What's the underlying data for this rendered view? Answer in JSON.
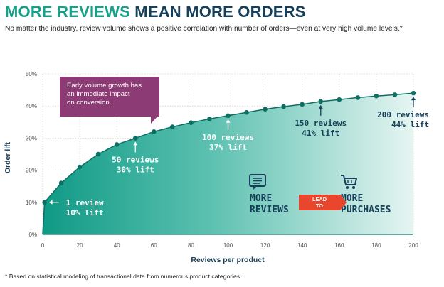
{
  "header": {
    "title_part1": "MORE REVIEWS",
    "title_part2": "MEAN MORE ORDERS",
    "subtitle": "No matter the industry, review volume shows a positive correlation with number of orders—even at very high volume levels.*"
  },
  "footnote": "* Based on statistical modeling of transactional data from numerous product categories.",
  "callout": {
    "line1": "Early volume growth has",
    "line2": "an immediate impact",
    "line3": "on conversion."
  },
  "flow": {
    "left_line1": "MORE",
    "left_line2": "REVIEWS",
    "arrow_line1": "LEAD",
    "arrow_line2": "TO",
    "right_line1": "MORE",
    "right_line2": "PURCHASES",
    "left_icon": "comment-icon",
    "right_icon": "shopping-cart-icon"
  },
  "colors": {
    "teal": "#16a08a",
    "navy": "#16405a",
    "callout_purple": "#8d3b75",
    "arrow_orange": "#e8472e"
  },
  "chart_data": {
    "type": "area",
    "title": "MORE REVIEWS MEAN MORE ORDERS",
    "xlabel": "Reviews per product",
    "ylabel": "Order lift",
    "xlim": [
      0,
      200
    ],
    "ylim": [
      0,
      50
    ],
    "x_ticks": [
      "0",
      "20",
      "40",
      "60",
      "80",
      "100",
      "120",
      "140",
      "160",
      "180",
      "200"
    ],
    "y_ticks": [
      "0%",
      "10%",
      "20%",
      "30%",
      "40%",
      "50%"
    ],
    "grid": true,
    "x": [
      0,
      1,
      10,
      20,
      30,
      40,
      50,
      60,
      70,
      80,
      90,
      100,
      110,
      120,
      130,
      140,
      150,
      160,
      170,
      180,
      190,
      200
    ],
    "values": [
      0,
      10,
      16,
      21,
      25,
      28,
      30,
      32,
      33.5,
      34.8,
      36,
      37,
      38,
      39,
      39.8,
      40.5,
      41.4,
      42,
      42.6,
      43.1,
      43.5,
      44
    ],
    "markers": [
      1,
      10,
      20,
      30,
      40,
      50,
      60,
      70,
      80,
      90,
      100,
      110,
      120,
      130,
      140,
      150,
      160,
      170,
      180,
      190,
      200
    ],
    "annotations": [
      {
        "x": 1,
        "y": 10,
        "line1": "1 review",
        "line2": "10% lift"
      },
      {
        "x": 50,
        "y": 30,
        "line1": "50 reviews",
        "line2": "30% lift"
      },
      {
        "x": 100,
        "y": 37,
        "line1": "100 reviews",
        "line2": "37% lift"
      },
      {
        "x": 150,
        "y": 41,
        "line1": "150 reviews",
        "line2": "41% lift"
      },
      {
        "x": 200,
        "y": 44,
        "line1": "200 reviews",
        "line2": "44% lift"
      }
    ]
  }
}
